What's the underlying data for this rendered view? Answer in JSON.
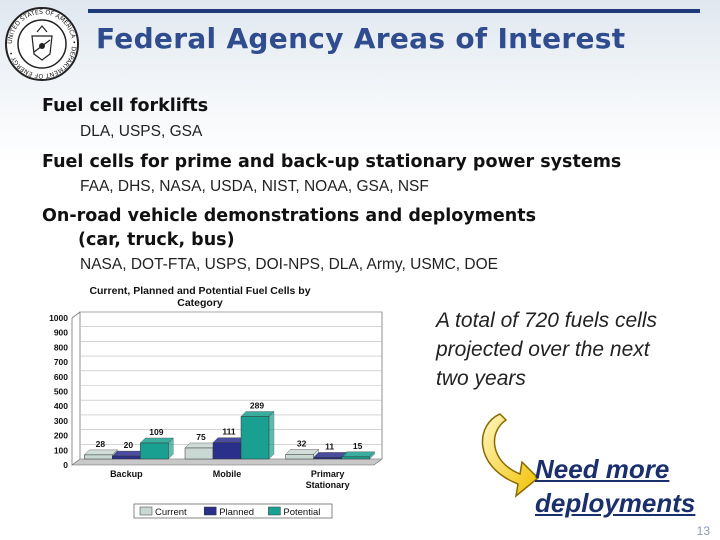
{
  "title": "Federal Agency Areas of Interest",
  "bullets": [
    {
      "head": "Fuel cell forklifts",
      "sub": "DLA, USPS, GSA"
    },
    {
      "head": "Fuel cells for prime and back-up stationary power systems",
      "sub": "FAA, DHS, NASA, USDA, NIST, NOAA, GSA, NSF"
    },
    {
      "head_line1": "On-road vehicle demonstrations and deployments",
      "head_line2": "(car, truck, bus)",
      "sub": "NASA, DOT-FTA, USPS, DOI-NPS, DLA, Army, USMC, DOE"
    }
  ],
  "callout": "A total of 720 fuels cells projected over the next two years",
  "need": {
    "line1": "Need more",
    "line2": "deployments"
  },
  "page_number": "13",
  "colors": {
    "accent": "#2e4c8e",
    "current": "#c9d8d2",
    "planned": "#2b2f8c",
    "potential": "#1aa090"
  },
  "chart_data": {
    "type": "bar",
    "title_line1": "Current, Planned and Potential Fuel Cells by",
    "title_line2": "Category",
    "categories": [
      "Backup",
      "Mobile",
      "Primary Stationary"
    ],
    "category_lines": [
      [
        "Backup"
      ],
      [
        "Mobile"
      ],
      [
        "Primary",
        "Stationary"
      ]
    ],
    "series": [
      {
        "name": "Current",
        "values": [
          28,
          75,
          32
        ]
      },
      {
        "name": "Planned",
        "values": [
          20,
          111,
          11
        ]
      },
      {
        "name": "Potential",
        "values": [
          109,
          289,
          15
        ]
      }
    ],
    "yticks": [
      "0",
      "100",
      "200",
      "300",
      "400",
      "500",
      "600",
      "700",
      "800",
      "900",
      "1000"
    ],
    "ylim": [
      0,
      1000
    ],
    "grid": true,
    "legend_position": "bottom"
  }
}
